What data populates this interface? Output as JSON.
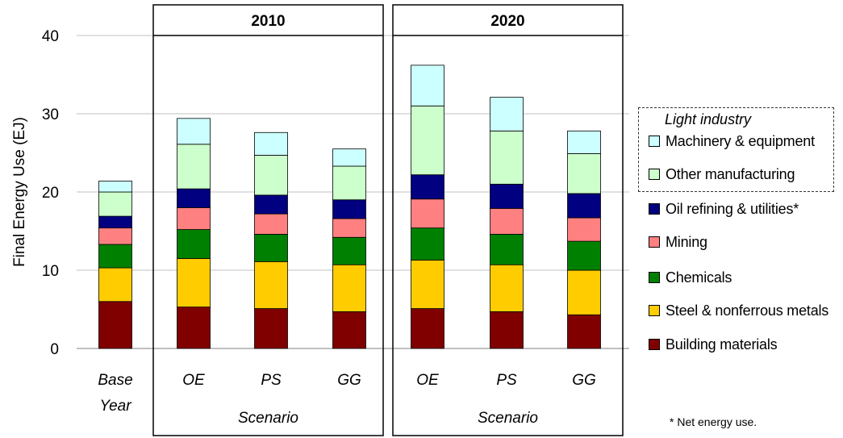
{
  "chart_data": {
    "type": "bar",
    "stacked": true,
    "ylabel": "Final Energy Use (EJ)",
    "ylim": [
      0,
      40
    ],
    "yticks": [
      0,
      10,
      20,
      30,
      40
    ],
    "grid": true,
    "legend_placement": "right",
    "groups": [
      {
        "title": "",
        "xlabel": "",
        "categories": [
          "Base\nYear"
        ]
      },
      {
        "title": "2010",
        "xlabel": "Scenario",
        "categories": [
          "OE",
          "PS",
          "GG"
        ]
      },
      {
        "title": "2020",
        "xlabel": "Scenario",
        "categories": [
          "OE",
          "PS",
          "GG"
        ]
      }
    ],
    "categories": [
      "Base Year",
      "OE",
      "PS",
      "GG",
      "OE",
      "PS",
      "GG"
    ],
    "series": [
      {
        "name": "Building materials",
        "color": "#800000",
        "values": [
          6.0,
          5.3,
          5.1,
          4.7,
          5.1,
          4.7,
          4.3
        ]
      },
      {
        "name": "Steel & nonferrous metals",
        "color": "#FFCC00",
        "values": [
          4.3,
          6.2,
          6.0,
          6.0,
          6.2,
          6.0,
          5.7
        ]
      },
      {
        "name": "Chemicals",
        "color": "#008000",
        "values": [
          3.0,
          3.7,
          3.5,
          3.5,
          4.1,
          3.9,
          3.7
        ]
      },
      {
        "name": "Mining",
        "color": "#FF8080",
        "values": [
          2.1,
          2.8,
          2.6,
          2.4,
          3.7,
          3.3,
          3.0
        ]
      },
      {
        "name": "Oil refining & utilities*",
        "color": "#000080",
        "values": [
          1.5,
          2.4,
          2.4,
          2.4,
          3.1,
          3.1,
          3.1
        ]
      },
      {
        "name": "Other manufacturing",
        "color": "#CCFFCC",
        "values": [
          3.1,
          5.7,
          5.1,
          4.3,
          8.8,
          6.8,
          5.1
        ]
      },
      {
        "name": "Machinery & equipment",
        "color": "#CCFFFF",
        "values": [
          1.4,
          3.3,
          2.9,
          2.2,
          5.2,
          4.3,
          2.9
        ]
      }
    ],
    "legend": {
      "title": "Light industry",
      "entries": [
        "Machinery & equipment",
        "Other manufacturing",
        "Oil refining & utilities*",
        "Mining",
        "Chemicals",
        "Steel & nonferrous metals",
        "Building materials"
      ]
    },
    "footnote": "* Net energy use."
  }
}
